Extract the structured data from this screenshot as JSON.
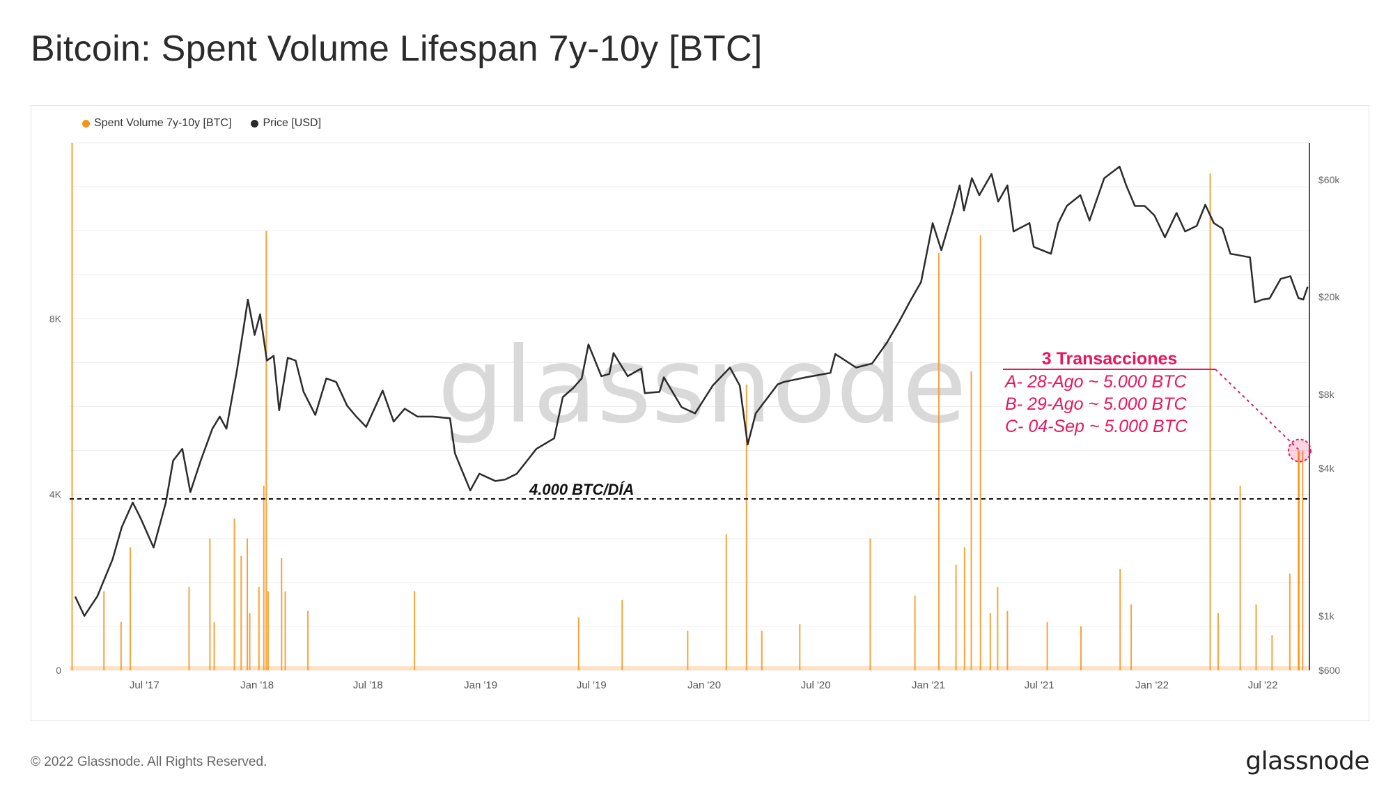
{
  "title": "Bitcoin: Spent Volume Lifespan 7y-10y [BTC]",
  "footer": {
    "copyright": "© 2022 Glassnode. All Rights Reserved.",
    "logo": "glassnode"
  },
  "watermark": "glassnode",
  "colors": {
    "volume": "#f7931a",
    "price": "#2b2b2b",
    "annotation": "#e8175d",
    "grid": "#eeeeee"
  },
  "chart_data": {
    "type": "bar+line",
    "legend": [
      {
        "name": "Spent Volume 7y-10y [BTC]",
        "color": "#f7931a"
      },
      {
        "name": "Price [USD]",
        "color": "#2b2b2b"
      }
    ],
    "x_range": [
      "2017-03-01",
      "2022-09-15"
    ],
    "x_ticks": [
      "Jul '17",
      "Jan '18",
      "Jul '18",
      "Jan '19",
      "Jul '19",
      "Jan '20",
      "Jul '20",
      "Jan '21",
      "Jul '21",
      "Jan '22",
      "Jul '22"
    ],
    "y_left": {
      "ticks": [
        {
          "v": 0,
          "label": "0"
        },
        {
          "v": 4000,
          "label": "4K"
        },
        {
          "v": 8000,
          "label": "8K"
        }
      ],
      "max": 12000
    },
    "y_right": {
      "scale": "log",
      "min": 600,
      "max": 85000,
      "ticks": [
        {
          "v": 600,
          "label": "$600"
        },
        {
          "v": 1000,
          "label": "$1k"
        },
        {
          "v": 4000,
          "label": "$4k"
        },
        {
          "v": 8000,
          "label": "$8k"
        },
        {
          "v": 20000,
          "label": "$20k"
        },
        {
          "v": 60000,
          "label": "$60k"
        }
      ]
    },
    "threshold": {
      "value": 3900,
      "label": "4.000 BTC/DÍA"
    },
    "annotation": {
      "title": "3 Transacciones",
      "lines": [
        "A- 28-Ago ~ 5.000 BTC",
        "B- 29-Ago ~ 5.000 BTC",
        "C- 04-Sep ~ 5.000 BTC"
      ],
      "target_date": "2022-08-30",
      "target_value": 5000
    },
    "volume_series": [
      {
        "date": "2017-03-05",
        "value": 12000
      },
      {
        "date": "2017-04-26",
        "value": 1800
      },
      {
        "date": "2017-05-24",
        "value": 1100
      },
      {
        "date": "2017-06-08",
        "value": 2800
      },
      {
        "date": "2017-09-12",
        "value": 1900
      },
      {
        "date": "2017-10-16",
        "value": 3000
      },
      {
        "date": "2017-10-23",
        "value": 1100
      },
      {
        "date": "2017-11-25",
        "value": 3450
      },
      {
        "date": "2017-12-06",
        "value": 2600
      },
      {
        "date": "2017-12-16",
        "value": 3000
      },
      {
        "date": "2017-12-20",
        "value": 1300
      },
      {
        "date": "2018-01-04",
        "value": 1900
      },
      {
        "date": "2018-01-12",
        "value": 4200
      },
      {
        "date": "2018-01-16",
        "value": 10000
      },
      {
        "date": "2018-01-19",
        "value": 1800
      },
      {
        "date": "2018-02-10",
        "value": 2550
      },
      {
        "date": "2018-02-16",
        "value": 1800
      },
      {
        "date": "2018-03-25",
        "value": 1350
      },
      {
        "date": "2018-09-15",
        "value": 1800
      },
      {
        "date": "2019-06-10",
        "value": 1200
      },
      {
        "date": "2019-08-20",
        "value": 1600
      },
      {
        "date": "2019-12-05",
        "value": 900
      },
      {
        "date": "2020-02-06",
        "value": 3100
      },
      {
        "date": "2020-03-10",
        "value": 6500
      },
      {
        "date": "2020-04-04",
        "value": 900
      },
      {
        "date": "2020-06-05",
        "value": 1050
      },
      {
        "date": "2020-09-28",
        "value": 3000
      },
      {
        "date": "2020-12-10",
        "value": 1700
      },
      {
        "date": "2021-01-18",
        "value": 9500
      },
      {
        "date": "2021-02-15",
        "value": 2400
      },
      {
        "date": "2021-03-01",
        "value": 2800
      },
      {
        "date": "2021-03-12",
        "value": 6800
      },
      {
        "date": "2021-03-27",
        "value": 9900
      },
      {
        "date": "2021-04-12",
        "value": 1300
      },
      {
        "date": "2021-04-24",
        "value": 1900
      },
      {
        "date": "2021-05-10",
        "value": 1350
      },
      {
        "date": "2021-07-14",
        "value": 1100
      },
      {
        "date": "2021-09-07",
        "value": 1000
      },
      {
        "date": "2021-11-10",
        "value": 2300
      },
      {
        "date": "2021-11-28",
        "value": 1500
      },
      {
        "date": "2022-04-06",
        "value": 11300
      },
      {
        "date": "2022-04-19",
        "value": 1300
      },
      {
        "date": "2022-05-25",
        "value": 4200
      },
      {
        "date": "2022-06-20",
        "value": 1500
      },
      {
        "date": "2022-07-16",
        "value": 800
      },
      {
        "date": "2022-08-14",
        "value": 2200
      },
      {
        "date": "2022-08-28",
        "value": 5000
      },
      {
        "date": "2022-08-29",
        "value": 5000
      },
      {
        "date": "2022-09-04",
        "value": 5000
      }
    ],
    "price_series": [
      [
        "2017-03-10",
        1200
      ],
      [
        "2017-03-25",
        1000
      ],
      [
        "2017-04-15",
        1200
      ],
      [
        "2017-05-10",
        1700
      ],
      [
        "2017-05-25",
        2300
      ],
      [
        "2017-06-12",
        2900
      ],
      [
        "2017-06-25",
        2500
      ],
      [
        "2017-07-16",
        1900
      ],
      [
        "2017-08-05",
        2900
      ],
      [
        "2017-08-17",
        4300
      ],
      [
        "2017-09-01",
        4800
      ],
      [
        "2017-09-14",
        3200
      ],
      [
        "2017-10-01",
        4300
      ],
      [
        "2017-10-20",
        5800
      ],
      [
        "2017-11-01",
        6500
      ],
      [
        "2017-11-12",
        5800
      ],
      [
        "2017-11-29",
        10000
      ],
      [
        "2017-12-10",
        15000
      ],
      [
        "2017-12-17",
        19500
      ],
      [
        "2017-12-28",
        14000
      ],
      [
        "2018-01-06",
        17000
      ],
      [
        "2018-01-17",
        11000
      ],
      [
        "2018-01-28",
        11500
      ],
      [
        "2018-02-06",
        6900
      ],
      [
        "2018-02-20",
        11300
      ],
      [
        "2018-03-05",
        11000
      ],
      [
        "2018-03-18",
        8200
      ],
      [
        "2018-04-06",
        6600
      ],
      [
        "2018-04-24",
        9300
      ],
      [
        "2018-05-10",
        9000
      ],
      [
        "2018-05-28",
        7200
      ],
      [
        "2018-06-12",
        6500
      ],
      [
        "2018-06-28",
        5900
      ],
      [
        "2018-07-25",
        8300
      ],
      [
        "2018-08-12",
        6200
      ],
      [
        "2018-08-30",
        7000
      ],
      [
        "2018-09-20",
        6500
      ],
      [
        "2018-10-15",
        6500
      ],
      [
        "2018-11-12",
        6400
      ],
      [
        "2018-11-20",
        4600
      ],
      [
        "2018-11-30",
        4000
      ],
      [
        "2018-12-15",
        3250
      ],
      [
        "2018-12-30",
        3800
      ],
      [
        "2019-01-25",
        3550
      ],
      [
        "2019-02-10",
        3600
      ],
      [
        "2019-03-01",
        3800
      ],
      [
        "2019-04-02",
        4800
      ],
      [
        "2019-05-01",
        5300
      ],
      [
        "2019-05-15",
        7800
      ],
      [
        "2019-06-01",
        8500
      ],
      [
        "2019-06-15",
        9300
      ],
      [
        "2019-06-26",
        12800
      ],
      [
        "2019-07-17",
        9500
      ],
      [
        "2019-07-30",
        9700
      ],
      [
        "2019-08-06",
        11800
      ],
      [
        "2019-08-29",
        9500
      ],
      [
        "2019-09-20",
        10200
      ],
      [
        "2019-09-26",
        8100
      ],
      [
        "2019-10-20",
        8200
      ],
      [
        "2019-10-27",
        9400
      ],
      [
        "2019-11-25",
        7100
      ],
      [
        "2019-12-17",
        6700
      ],
      [
        "2020-01-15",
        8700
      ],
      [
        "2020-02-12",
        10300
      ],
      [
        "2020-02-28",
        8700
      ],
      [
        "2020-03-12",
        5000
      ],
      [
        "2020-03-25",
        6700
      ],
      [
        "2020-04-30",
        8800
      ],
      [
        "2020-05-10",
        9000
      ],
      [
        "2020-06-15",
        9400
      ],
      [
        "2020-07-25",
        9800
      ],
      [
        "2020-08-02",
        11700
      ],
      [
        "2020-09-05",
        10300
      ],
      [
        "2020-10-01",
        10700
      ],
      [
        "2020-10-25",
        13000
      ],
      [
        "2020-11-15",
        16000
      ],
      [
        "2020-12-01",
        19000
      ],
      [
        "2020-12-20",
        23000
      ],
      [
        "2021-01-08",
        40000
      ],
      [
        "2021-01-22",
        31000
      ],
      [
        "2021-02-10",
        45000
      ],
      [
        "2021-02-21",
        57000
      ],
      [
        "2021-02-28",
        45000
      ],
      [
        "2021-03-13",
        61000
      ],
      [
        "2021-03-25",
        52000
      ],
      [
        "2021-04-14",
        63500
      ],
      [
        "2021-04-25",
        49000
      ],
      [
        "2021-05-10",
        57000
      ],
      [
        "2021-05-20",
        37000
      ],
      [
        "2021-06-15",
        40000
      ],
      [
        "2021-06-22",
        32000
      ],
      [
        "2021-07-20",
        30000
      ],
      [
        "2021-08-01",
        40000
      ],
      [
        "2021-08-15",
        47000
      ],
      [
        "2021-09-06",
        52000
      ],
      [
        "2021-09-21",
        41000
      ],
      [
        "2021-10-15",
        61000
      ],
      [
        "2021-11-09",
        68000
      ],
      [
        "2021-11-20",
        57000
      ],
      [
        "2021-12-04",
        47000
      ],
      [
        "2021-12-20",
        47000
      ],
      [
        "2022-01-05",
        43000
      ],
      [
        "2022-01-22",
        35000
      ],
      [
        "2022-02-10",
        44000
      ],
      [
        "2022-02-24",
        37000
      ],
      [
        "2022-03-15",
        39000
      ],
      [
        "2022-03-29",
        47500
      ],
      [
        "2022-04-12",
        40000
      ],
      [
        "2022-04-26",
        38000
      ],
      [
        "2022-05-09",
        30000
      ],
      [
        "2022-05-25",
        29500
      ],
      [
        "2022-06-10",
        29000
      ],
      [
        "2022-06-18",
        19000
      ],
      [
        "2022-06-30",
        19500
      ],
      [
        "2022-07-12",
        19700
      ],
      [
        "2022-07-30",
        23700
      ],
      [
        "2022-08-15",
        24300
      ],
      [
        "2022-08-28",
        19800
      ],
      [
        "2022-09-05",
        19500
      ],
      [
        "2022-09-12",
        22000
      ]
    ]
  }
}
